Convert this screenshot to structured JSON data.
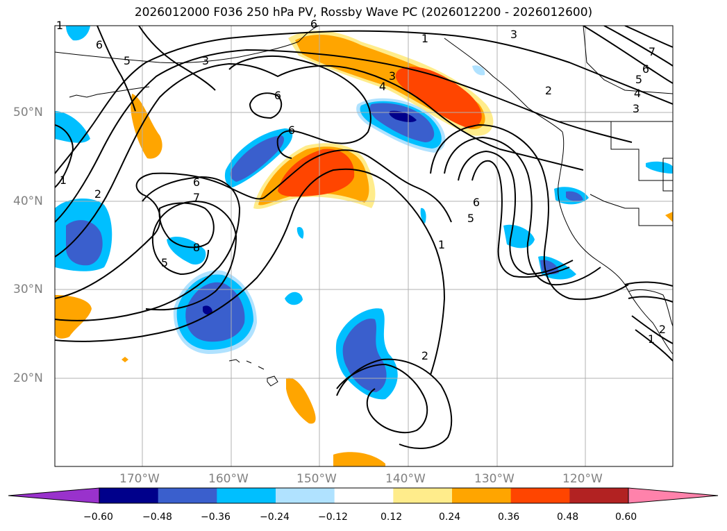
{
  "title": "2026012000 F036 250 hPa PV, Rossby Wave PC (2026012200 - 2026012600)",
  "lat_labels": [
    "50°N",
    "40°N",
    "30°N",
    "20°N"
  ],
  "lon_labels": [
    "170°W",
    "160°W",
    "150°W",
    "140°W",
    "130°W",
    "120°W"
  ],
  "colorbar": {
    "tick_labels": [
      "−0.60",
      "−0.48",
      "−0.36",
      "−0.24",
      "−0.12",
      "0.12",
      "0.24",
      "0.36",
      "0.48",
      "0.60"
    ],
    "colors": [
      "#9932cc",
      "#00008b",
      "#3a5fcd",
      "#00bfff",
      "#b0e2ff",
      "#ffffff",
      "#ffec8b",
      "#ffa500",
      "#ff4500",
      "#b22222",
      "#ff82ab"
    ]
  },
  "contour_labels": [
    "6",
    "5",
    "3",
    "2",
    "1",
    "3",
    "6",
    "7",
    "6",
    "5",
    "4",
    "3",
    "1",
    "2",
    "3",
    "4",
    "6",
    "6",
    "1",
    "2",
    "6",
    "7",
    "8",
    "5",
    "6",
    "5",
    "1",
    "2",
    "1"
  ],
  "colors": {
    "contour": "#000000",
    "coast": "#000000",
    "grid": "#b0b0b0"
  }
}
